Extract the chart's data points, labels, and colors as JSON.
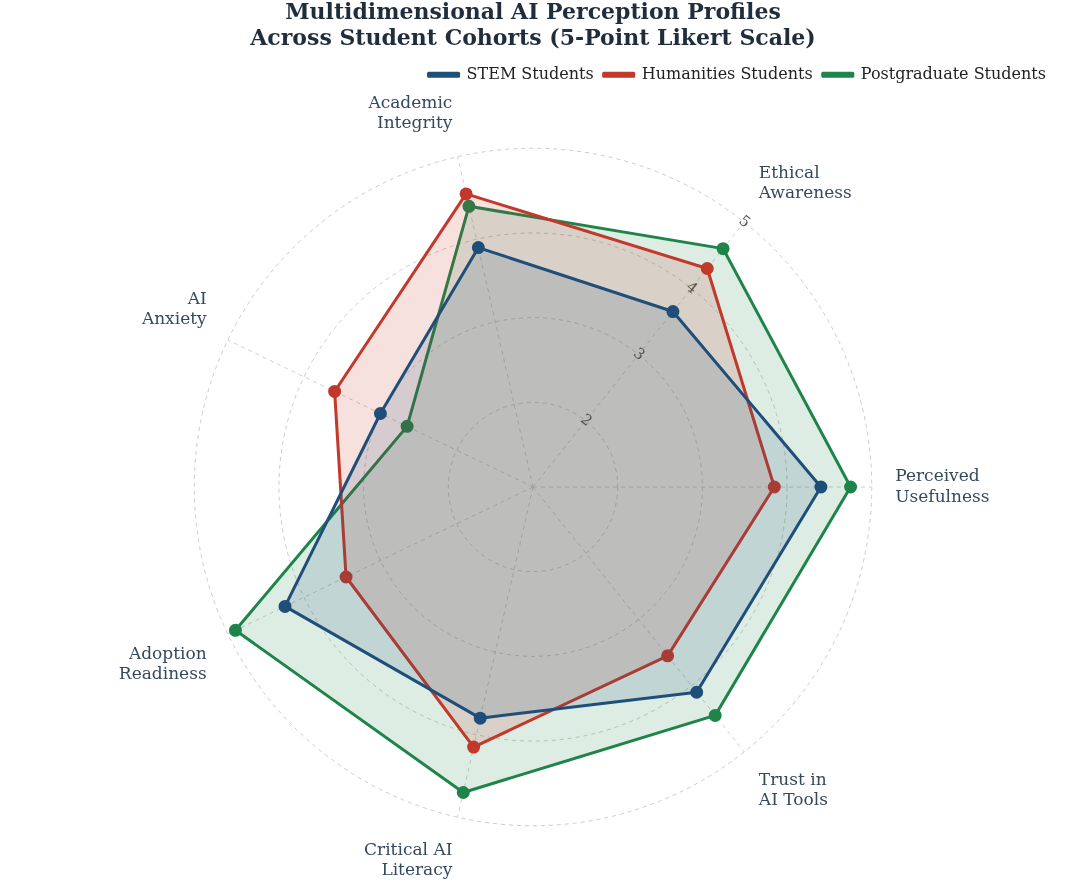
{
  "chart_data": {
    "type": "radar",
    "title": "Multidimensional AI Perception Profiles\nAcross Student Cohorts (5-Point Likert Scale)",
    "categories": [
      "Ethical Awareness",
      "Perceived Usefulness",
      "Trust in AI Tools",
      "Critical AI Literacy",
      "Adoption Readiness",
      "AI Anxiety",
      "Academic Integrity"
    ],
    "series": [
      {
        "name": "STEM Students",
        "color": "#1f4e79",
        "values": [
          3.65,
          4.4,
          4.1,
          3.8,
          4.25,
          3.0,
          3.9
        ]
      },
      {
        "name": "Humanities Students",
        "color": "#c0392b",
        "values": [
          4.3,
          3.85,
          3.55,
          4.15,
          3.45,
          3.6,
          4.55
        ]
      },
      {
        "name": "Postgraduate Students",
        "color": "#1e8449",
        "values": [
          4.6,
          4.75,
          4.45,
          4.7,
          4.9,
          2.65,
          4.4
        ]
      }
    ],
    "ylim": [
      1,
      5
    ],
    "yticks": [
      2,
      3,
      4,
      5
    ],
    "grid": true,
    "legend": "top right",
    "marker": "circle",
    "line_style": "solid"
  }
}
